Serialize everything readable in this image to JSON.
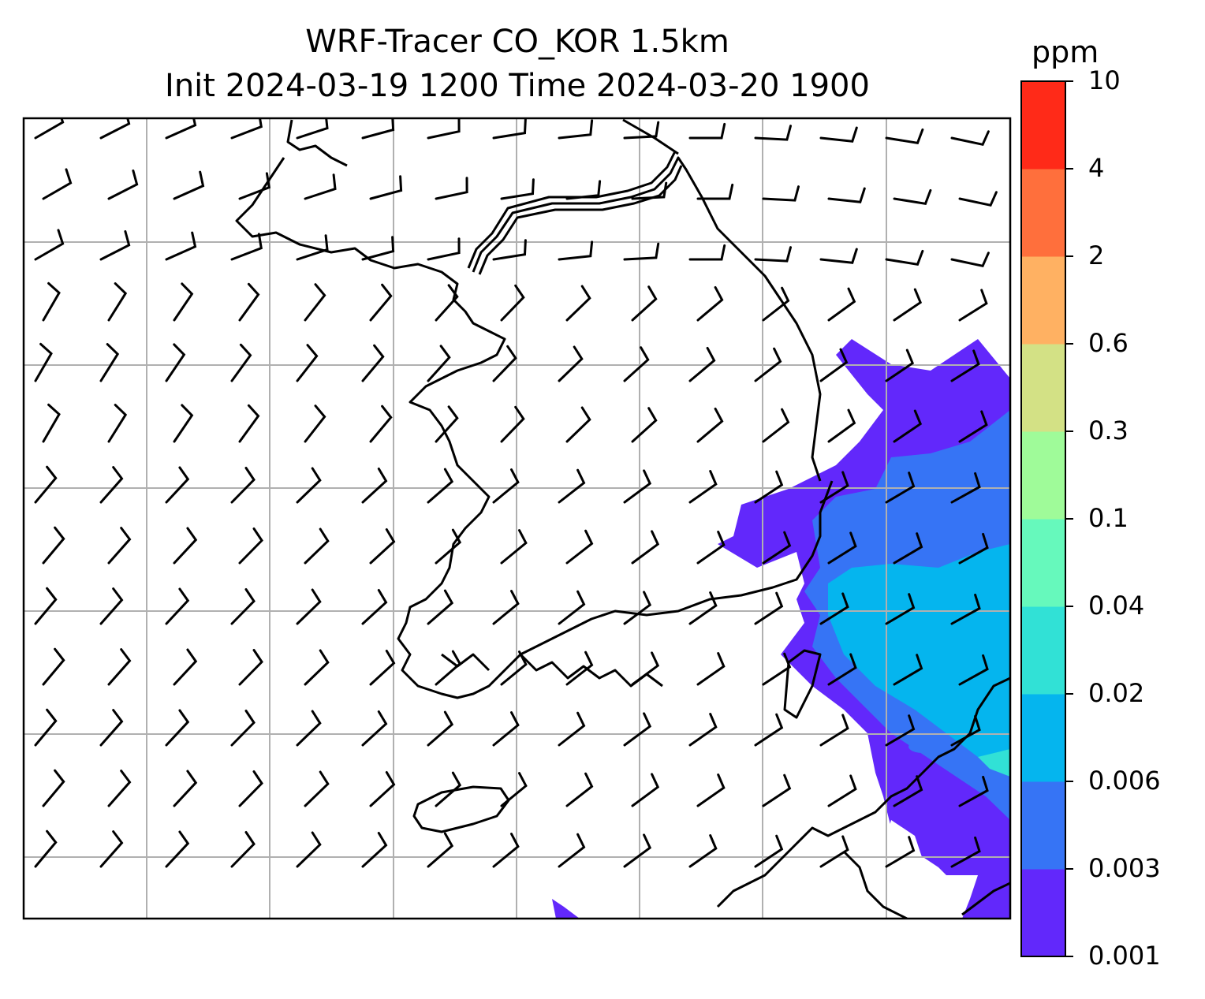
{
  "title": {
    "line1": "WRF-Tracer CO_KOR 1.5km",
    "line2": "Init 2024-03-19 1200 Time 2024-03-20 1900"
  },
  "colorbar": {
    "unit": "ppm",
    "levels": [
      "0.001",
      "0.003",
      "0.006",
      "0.02",
      "0.04",
      "0.1",
      "0.3",
      "0.6",
      "2",
      "4",
      "10"
    ],
    "colors": [
      "#6228fb",
      "#3674f5",
      "#05b5ee",
      "#31e1d6",
      "#66f9bc",
      "#9ffb99",
      "#d3e185",
      "#ffb162",
      "#ff6f3c",
      "#ff2a18"
    ]
  },
  "map": {
    "gridlines": "on",
    "concentration_field": "tracer CO plume over eastern portion of map",
    "wind_barbs": "on"
  }
}
